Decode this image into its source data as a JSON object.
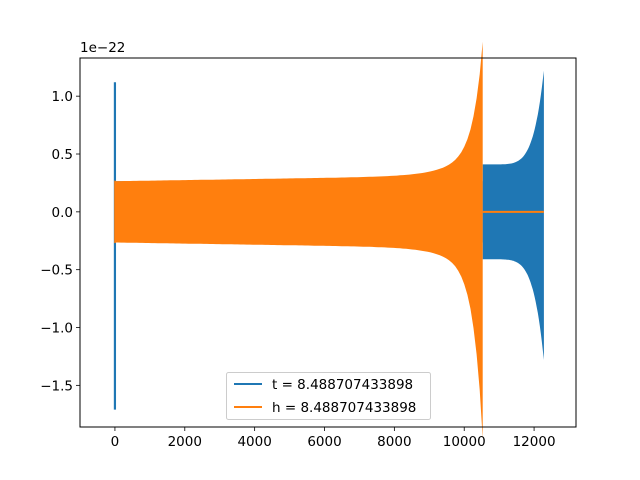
{
  "chart_data": {
    "type": "line",
    "title": "",
    "xlabel": "",
    "ylabel": "",
    "y_offset_label": "1e−22",
    "xlim": [
      -1000,
      13200
    ],
    "ylim": [
      -1.86,
      1.33
    ],
    "xticks": [
      0,
      2000,
      4000,
      6000,
      8000,
      10000,
      12000
    ],
    "xtick_labels": [
      "0",
      "2000",
      "4000",
      "6000",
      "8000",
      "10000",
      "12000"
    ],
    "yticks": [
      -1.5,
      -1.0,
      -0.5,
      0.0,
      0.5,
      1.0
    ],
    "ytick_labels": [
      "−1.5",
      "−1.0",
      "−0.5",
      "0.0",
      "0.5",
      "1.0"
    ],
    "grid": false,
    "legend_position": "lower center",
    "series": [
      {
        "name": "t = 8.488707433898",
        "color": "#1f77b4",
        "description_points": {
          "burst_x": 0,
          "burst_max": 1.12,
          "burst_min": -1.71,
          "segments": [
            {
              "x_start": 0,
              "x_end": 10530,
              "envelope_start": 0.265,
              "envelope_end": 0.29
            },
            {
              "x_start": 10530,
              "x_end": 12280,
              "envelope_start": 0.41,
              "envelope_end": 1.22,
              "envelope_min_end": -1.28
            }
          ]
        }
      },
      {
        "name": "h = 8.488707433898",
        "color": "#ff7f0e",
        "description_points": {
          "segments": [
            {
              "x_start": 0,
              "x_end": 10530,
              "envelope_start": 0.265,
              "envelope_end": 1.22,
              "envelope_min_end": -1.71
            },
            {
              "x_start": 10530,
              "x_end": 12280,
              "flat_value": 0.0
            }
          ]
        }
      }
    ]
  }
}
